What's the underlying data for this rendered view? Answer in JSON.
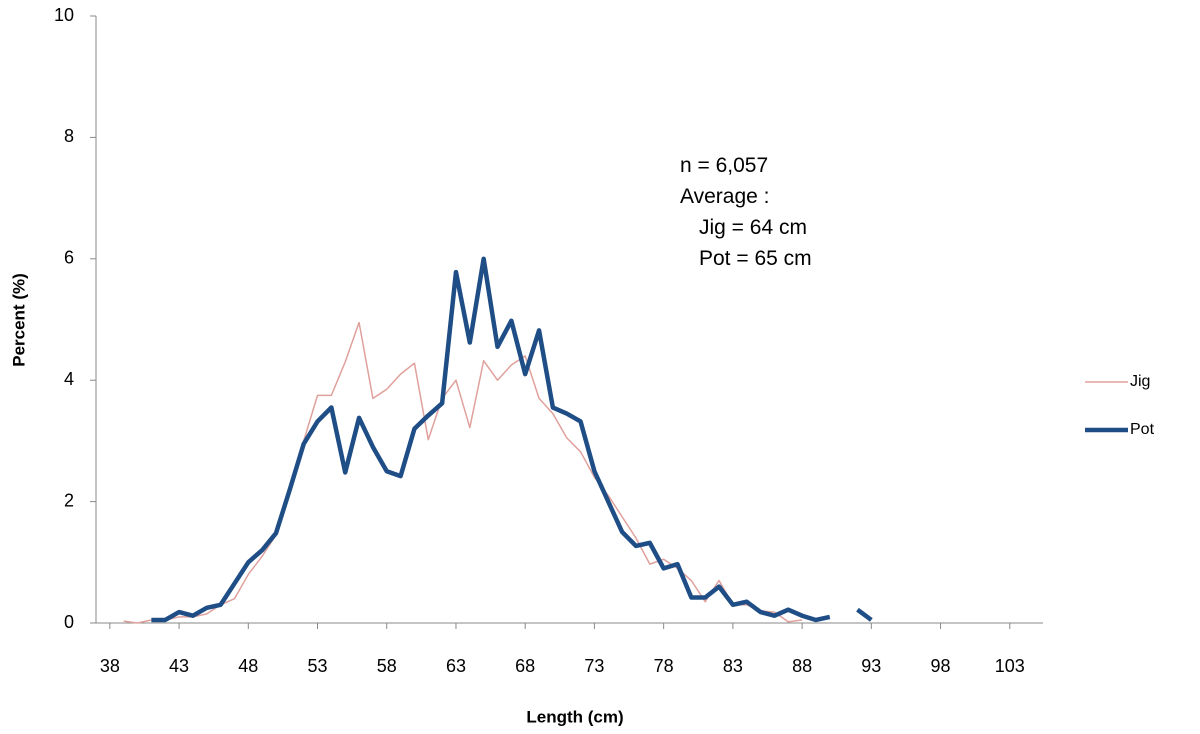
{
  "chart_data": {
    "type": "line",
    "xlabel": "Length (cm)",
    "ylabel": "Percent (%)",
    "annotation": [
      "n = 6,057",
      "Average :",
      "Jig = 64  cm",
      "Pot = 65 cm"
    ],
    "x": [
      39,
      40,
      41,
      42,
      43,
      44,
      45,
      46,
      47,
      48,
      49,
      50,
      51,
      52,
      53,
      54,
      55,
      56,
      57,
      58,
      59,
      60,
      61,
      62,
      63,
      64,
      65,
      66,
      67,
      68,
      69,
      70,
      71,
      72,
      73,
      74,
      75,
      76,
      77,
      78,
      79,
      80,
      81,
      82,
      83,
      84,
      85,
      86,
      87,
      88,
      89,
      90,
      91,
      92,
      93
    ],
    "series": [
      {
        "name": "Jig",
        "color": "#e0a09c",
        "width": 1.5,
        "values": [
          0.03,
          0.0,
          0.05,
          0.05,
          0.1,
          0.1,
          0.15,
          0.3,
          0.4,
          0.8,
          1.1,
          1.45,
          2.2,
          3.0,
          3.75,
          3.75,
          4.3,
          4.95,
          3.7,
          3.85,
          4.1,
          4.28,
          3.02,
          3.7,
          4.0,
          3.22,
          4.32,
          4.0,
          4.25,
          4.4,
          3.7,
          3.45,
          3.05,
          2.82,
          2.4,
          2.1,
          1.75,
          1.4,
          0.97,
          1.05,
          0.9,
          0.7,
          0.35,
          0.7,
          0.3,
          0.3,
          0.2,
          0.18,
          0.02,
          0.05,
          null,
          null,
          null,
          null,
          null
        ]
      },
      {
        "name": "Pot",
        "color": "#1f4e86",
        "width": 4.5,
        "values": [
          null,
          null,
          0.05,
          0.05,
          0.18,
          0.12,
          0.25,
          0.3,
          0.65,
          1.0,
          1.2,
          1.48,
          2.2,
          2.95,
          3.32,
          3.55,
          2.48,
          3.38,
          2.9,
          2.5,
          2.42,
          3.2,
          3.42,
          3.62,
          5.78,
          4.62,
          6.0,
          4.55,
          4.98,
          4.1,
          4.82,
          3.55,
          3.45,
          3.32,
          2.5,
          2.0,
          1.5,
          1.27,
          1.32,
          0.9,
          0.97,
          0.42,
          0.42,
          0.6,
          0.3,
          0.35,
          0.18,
          0.12,
          0.22,
          0.12,
          0.05,
          0.1,
          null,
          0.22,
          0.05
        ]
      }
    ],
    "xlim": [
      37,
      105.4
    ],
    "xticks": [
      38,
      43,
      48,
      53,
      58,
      63,
      68,
      73,
      78,
      83,
      88,
      93,
      98,
      103
    ],
    "ylim": [
      0,
      10
    ],
    "yticks": [
      0,
      2,
      4,
      6,
      8,
      10
    ],
    "legend": "right"
  }
}
